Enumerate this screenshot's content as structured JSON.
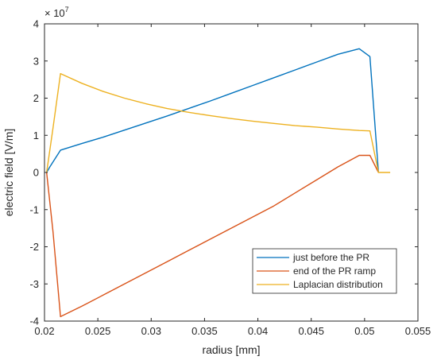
{
  "chart_data": {
    "type": "line",
    "title": "",
    "xlabel": "radius [mm]",
    "ylabel": "electric field [V/m]",
    "y_exponent_label": "× 10",
    "y_exponent_power": "7",
    "xlim": [
      0.02,
      0.055
    ],
    "ylim": [
      -4,
      4
    ],
    "y_scale_note": "values in units of 1e7 V/m",
    "xticks": [
      "0.02",
      "0.025",
      "0.03",
      "0.035",
      "0.04",
      "0.045",
      "0.05",
      "0.055"
    ],
    "yticks": [
      "4",
      "3",
      "2",
      "1",
      "0",
      "-1",
      "-2",
      "-3",
      "-4"
    ],
    "grid": false,
    "legend_position": "bottom-right",
    "series": [
      {
        "name": "just before the PR",
        "color": "#0072BD",
        "x": [
          0.0202,
          0.0205,
          0.0215,
          0.0235,
          0.0255,
          0.0275,
          0.0295,
          0.0315,
          0.0335,
          0.0355,
          0.0375,
          0.0395,
          0.0415,
          0.0435,
          0.0455,
          0.0475,
          0.0495,
          0.0505,
          0.0513
        ],
        "y": [
          0.0,
          0.15,
          0.6,
          0.78,
          0.95,
          1.14,
          1.33,
          1.52,
          1.72,
          1.92,
          2.13,
          2.34,
          2.55,
          2.76,
          2.97,
          3.18,
          3.33,
          3.12,
          0.0
        ]
      },
      {
        "name": "end of the PR ramp",
        "color": "#D95319",
        "x": [
          0.0202,
          0.0208,
          0.0215,
          0.0235,
          0.0255,
          0.0275,
          0.0295,
          0.0315,
          0.0335,
          0.0355,
          0.0375,
          0.0395,
          0.0415,
          0.0435,
          0.0455,
          0.0475,
          0.0495,
          0.0505,
          0.0513
        ],
        "y": [
          0.0,
          -1.6,
          -3.88,
          -3.6,
          -3.3,
          -3.0,
          -2.7,
          -2.4,
          -2.1,
          -1.8,
          -1.5,
          -1.2,
          -0.9,
          -0.55,
          -0.2,
          0.15,
          0.46,
          0.46,
          0.0
        ]
      },
      {
        "name": "Laplacian distribution",
        "color": "#EDB120",
        "x": [
          0.0202,
          0.0208,
          0.0215,
          0.0235,
          0.0255,
          0.0275,
          0.0295,
          0.0315,
          0.0335,
          0.0355,
          0.0375,
          0.0395,
          0.0415,
          0.0435,
          0.0455,
          0.0475,
          0.0495,
          0.0505,
          0.0513,
          0.0524
        ],
        "y": [
          0.0,
          1.2,
          2.66,
          2.4,
          2.18,
          2.0,
          1.85,
          1.72,
          1.62,
          1.53,
          1.45,
          1.38,
          1.32,
          1.26,
          1.22,
          1.17,
          1.13,
          1.12,
          0.0,
          0.0
        ]
      }
    ]
  }
}
